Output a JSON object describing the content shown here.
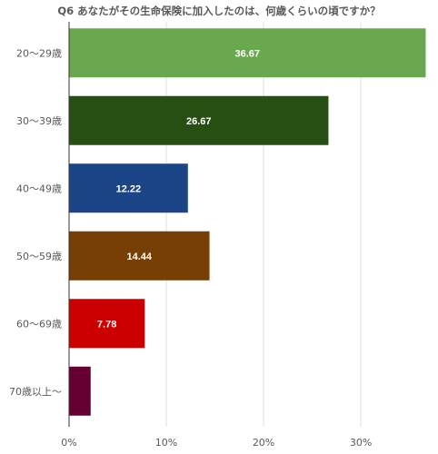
{
  "chart_data": {
    "type": "bar",
    "orientation": "horizontal",
    "title": "Q6 あなたがその生命保険に加入したのは、何歳くらいの頃ですか？",
    "categories": [
      "20〜29歳",
      "30〜39歳",
      "40〜49歳",
      "50〜59歳",
      "60〜69歳",
      "70歳以上〜"
    ],
    "values": [
      36.67,
      26.67,
      12.22,
      14.44,
      7.78,
      2.22
    ],
    "data_labels": [
      "36.67",
      "26.67",
      "12.22",
      "14.44",
      "7.78",
      ""
    ],
    "colors": [
      "#6aa84f",
      "#274e13",
      "#1c4587",
      "#783f04",
      "#cc0000",
      "#660033"
    ],
    "xlim": [
      0,
      37
    ],
    "xticks": [
      0,
      10,
      20,
      30
    ],
    "xtick_labels": [
      "0%",
      "10%",
      "20%",
      "30%"
    ],
    "grid": true,
    "legend": "none"
  }
}
